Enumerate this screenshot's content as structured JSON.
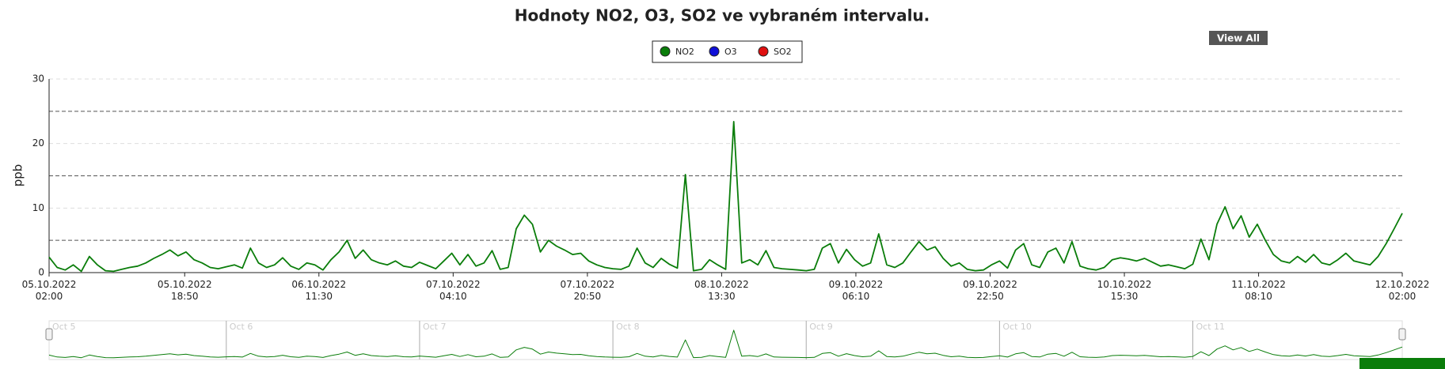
{
  "chart_data": {
    "type": "line",
    "title": "Hodnoty NO2, O3, SO2 ve vybraném intervalu.",
    "y_label": "ppb",
    "button": "View All",
    "x": [
      "05.10.2022 02:00",
      "05.10.2022 03:00",
      "05.10.2022 04:00",
      "05.10.2022 05:00",
      "05.10.2022 06:00",
      "05.10.2022 07:00",
      "05.10.2022 08:00",
      "05.10.2022 09:00",
      "05.10.2022 10:00",
      "05.10.2022 11:00",
      "05.10.2022 12:00",
      "05.10.2022 13:00",
      "05.10.2022 14:00",
      "05.10.2022 15:00",
      "05.10.2022 16:00",
      "05.10.2022 17:00",
      "05.10.2022 18:00",
      "05.10.2022 19:00",
      "05.10.2022 20:00",
      "05.10.2022 21:00",
      "05.10.2022 22:00",
      "05.10.2022 23:00",
      "06.10.2022 00:00",
      "06.10.2022 01:00",
      "06.10.2022 02:00",
      "06.10.2022 03:00",
      "06.10.2022 04:00",
      "06.10.2022 05:00",
      "06.10.2022 06:00",
      "06.10.2022 07:00",
      "06.10.2022 08:00",
      "06.10.2022 09:00",
      "06.10.2022 10:00",
      "06.10.2022 11:00",
      "06.10.2022 12:00",
      "06.10.2022 13:00",
      "06.10.2022 14:00",
      "06.10.2022 15:00",
      "06.10.2022 16:00",
      "06.10.2022 17:00",
      "06.10.2022 18:00",
      "06.10.2022 19:00",
      "06.10.2022 20:00",
      "06.10.2022 21:00",
      "06.10.2022 22:00",
      "06.10.2022 23:00",
      "07.10.2022 00:00",
      "07.10.2022 01:00",
      "07.10.2022 02:00",
      "07.10.2022 03:00",
      "07.10.2022 04:00",
      "07.10.2022 05:00",
      "07.10.2022 06:00",
      "07.10.2022 07:00",
      "07.10.2022 08:00",
      "07.10.2022 09:00",
      "07.10.2022 10:00",
      "07.10.2022 11:00",
      "07.10.2022 12:00",
      "07.10.2022 13:00",
      "07.10.2022 14:00",
      "07.10.2022 15:00",
      "07.10.2022 16:00",
      "07.10.2022 17:00",
      "07.10.2022 18:00",
      "07.10.2022 19:00",
      "07.10.2022 20:00",
      "07.10.2022 21:00",
      "07.10.2022 22:00",
      "07.10.2022 23:00",
      "08.10.2022 00:00",
      "08.10.2022 01:00",
      "08.10.2022 02:00",
      "08.10.2022 03:00",
      "08.10.2022 04:00",
      "08.10.2022 05:00",
      "08.10.2022 06:00",
      "08.10.2022 07:00",
      "08.10.2022 08:00",
      "08.10.2022 09:00",
      "08.10.2022 10:00",
      "08.10.2022 11:00",
      "08.10.2022 12:00",
      "08.10.2022 13:00",
      "08.10.2022 14:00",
      "08.10.2022 15:00",
      "08.10.2022 16:00",
      "08.10.2022 17:00",
      "08.10.2022 18:00",
      "08.10.2022 19:00",
      "08.10.2022 20:00",
      "08.10.2022 21:00",
      "08.10.2022 22:00",
      "08.10.2022 23:00",
      "09.10.2022 00:00",
      "09.10.2022 01:00",
      "09.10.2022 02:00",
      "09.10.2022 03:00",
      "09.10.2022 04:00",
      "09.10.2022 05:00",
      "09.10.2022 06:00",
      "09.10.2022 07:00",
      "09.10.2022 08:00",
      "09.10.2022 09:00",
      "09.10.2022 10:00",
      "09.10.2022 11:00",
      "09.10.2022 12:00",
      "09.10.2022 13:00",
      "09.10.2022 14:00",
      "09.10.2022 15:00",
      "09.10.2022 16:00",
      "09.10.2022 17:00",
      "09.10.2022 18:00",
      "09.10.2022 19:00",
      "09.10.2022 20:00",
      "09.10.2022 21:00",
      "09.10.2022 22:00",
      "09.10.2022 23:00",
      "10.10.2022 00:00",
      "10.10.2022 01:00",
      "10.10.2022 02:00",
      "10.10.2022 03:00",
      "10.10.2022 04:00",
      "10.10.2022 05:00",
      "10.10.2022 06:00",
      "10.10.2022 07:00",
      "10.10.2022 08:00",
      "10.10.2022 09:00",
      "10.10.2022 10:00",
      "10.10.2022 11:00",
      "10.10.2022 12:00",
      "10.10.2022 13:00",
      "10.10.2022 14:00",
      "10.10.2022 15:00",
      "10.10.2022 16:00",
      "10.10.2022 17:00",
      "10.10.2022 18:00",
      "10.10.2022 19:00",
      "10.10.2022 20:00",
      "10.10.2022 21:00",
      "10.10.2022 22:00",
      "10.10.2022 23:00",
      "11.10.2022 00:00",
      "11.10.2022 01:00",
      "11.10.2022 02:00",
      "11.10.2022 03:00",
      "11.10.2022 04:00",
      "11.10.2022 05:00",
      "11.10.2022 06:00",
      "11.10.2022 07:00",
      "11.10.2022 08:00",
      "11.10.2022 09:00",
      "11.10.2022 10:00",
      "11.10.2022 11:00",
      "11.10.2022 12:00",
      "11.10.2022 13:00",
      "11.10.2022 14:00",
      "11.10.2022 15:00",
      "11.10.2022 16:00",
      "11.10.2022 17:00",
      "11.10.2022 18:00",
      "11.10.2022 19:00",
      "11.10.2022 20:00",
      "11.10.2022 21:00",
      "11.10.2022 22:00",
      "11.10.2022 23:00",
      "12.10.2022 00:00",
      "12.10.2022 01:00",
      "12.10.2022 02:00"
    ],
    "series": [
      {
        "name": "NO2",
        "color": "#0a7d0a",
        "values": [
          2.4,
          0.8,
          0.4,
          1.2,
          0.2,
          2.5,
          1.2,
          0.3,
          0.2,
          0.5,
          0.8,
          1.0,
          1.5,
          2.2,
          2.8,
          3.5,
          2.6,
          3.2,
          2.0,
          1.5,
          0.8,
          0.6,
          0.9,
          1.2,
          0.7,
          3.8,
          1.5,
          0.8,
          1.2,
          2.3,
          1.0,
          0.5,
          1.5,
          1.2,
          0.4,
          2.0,
          3.2,
          5.0,
          2.2,
          3.5,
          2.0,
          1.5,
          1.2,
          1.8,
          1.0,
          0.8,
          1.6,
          1.1,
          0.6,
          1.8,
          3.0,
          1.2,
          2.8,
          1.0,
          1.5,
          3.4,
          0.5,
          0.8,
          6.8,
          8.9,
          7.5,
          3.2,
          5.0,
          4.1,
          3.5,
          2.8,
          3.0,
          1.8,
          1.2,
          0.8,
          0.6,
          0.5,
          1.0,
          3.8,
          1.5,
          0.8,
          2.2,
          1.3,
          0.7,
          15.2,
          0.3,
          0.5,
          2.0,
          1.2,
          0.5,
          23.4,
          1.5,
          2.0,
          1.2,
          3.4,
          0.8,
          0.6,
          0.5,
          0.4,
          0.3,
          0.5,
          3.8,
          4.5,
          1.5,
          3.6,
          2.0,
          1.0,
          1.5,
          6.0,
          1.2,
          0.8,
          1.5,
          3.2,
          4.8,
          3.5,
          4.0,
          2.2,
          1.0,
          1.5,
          0.5,
          0.3,
          0.4,
          1.2,
          1.8,
          0.7,
          3.5,
          4.5,
          1.2,
          0.8,
          3.2,
          3.8,
          1.5,
          4.8,
          1.0,
          0.6,
          0.4,
          0.8,
          2.0,
          2.3,
          2.1,
          1.8,
          2.2,
          1.6,
          1.0,
          1.2,
          0.9,
          0.6,
          1.3,
          5.2,
          2.0,
          7.5,
          10.2,
          6.8,
          8.8,
          5.5,
          7.5,
          5.0,
          2.8,
          1.8,
          1.5,
          2.5,
          1.6,
          2.8,
          1.5,
          1.2,
          2.0,
          3.0,
          1.8,
          1.5,
          1.2,
          2.5,
          4.5,
          6.8,
          9.2
        ]
      },
      {
        "name": "O3",
        "color": "#1010d8",
        "values": [
          null,
          null,
          null,
          null,
          null,
          null,
          null,
          null,
          null,
          null,
          null,
          null,
          null,
          null,
          null,
          null,
          null,
          null,
          null,
          null,
          null,
          null,
          null,
          null,
          null,
          null,
          null,
          null,
          null,
          null,
          null,
          null,
          null,
          null,
          null,
          null,
          null,
          null,
          null,
          null,
          null,
          null,
          null,
          null,
          null,
          null,
          null,
          null,
          null,
          null,
          null,
          null,
          null,
          null,
          null,
          null,
          null,
          null,
          null,
          null,
          null,
          null,
          null,
          null,
          null,
          null,
          null,
          null,
          null,
          null,
          null,
          null,
          null,
          null,
          null,
          null,
          null,
          null,
          null,
          null,
          null,
          null,
          null,
          null,
          null,
          null,
          null,
          null,
          null,
          null,
          null,
          null,
          null,
          null,
          null,
          null,
          null,
          null,
          null,
          null,
          null,
          null,
          null,
          null,
          null,
          null,
          null,
          null,
          null,
          null,
          null,
          null,
          null,
          null,
          null,
          null,
          null,
          null,
          null,
          null,
          null,
          null,
          null,
          null,
          null,
          null,
          null,
          null,
          null,
          null,
          null,
          null,
          null,
          null,
          null,
          null,
          null,
          null,
          null,
          null,
          null,
          null,
          null,
          null,
          null,
          null,
          null,
          null,
          null,
          null,
          null,
          null,
          null,
          null,
          null,
          null,
          null,
          null,
          null,
          null,
          null,
          null,
          null,
          null,
          null,
          null,
          null,
          null,
          null
        ]
      },
      {
        "name": "SO2",
        "color": "#e01010",
        "values": [
          null,
          null,
          null,
          null,
          null,
          null,
          null,
          null,
          null,
          null,
          null,
          null,
          null,
          null,
          null,
          null,
          null,
          null,
          null,
          null,
          null,
          null,
          null,
          null,
          null,
          null,
          null,
          null,
          null,
          null,
          null,
          null,
          null,
          null,
          null,
          null,
          null,
          null,
          null,
          null,
          null,
          null,
          null,
          null,
          null,
          null,
          null,
          null,
          null,
          null,
          null,
          null,
          null,
          null,
          null,
          null,
          null,
          null,
          null,
          null,
          null,
          null,
          null,
          null,
          null,
          null,
          null,
          null,
          null,
          null,
          null,
          null,
          null,
          null,
          null,
          null,
          null,
          null,
          null,
          null,
          null,
          null,
          null,
          null,
          null,
          null,
          null,
          null,
          null,
          null,
          null,
          null,
          null,
          null,
          null,
          null,
          null,
          null,
          null,
          null,
          null,
          null,
          null,
          null,
          null,
          null,
          null,
          null,
          null,
          null,
          null,
          null,
          null,
          null,
          null,
          null,
          null,
          null,
          null,
          null,
          null,
          null,
          null,
          null,
          null,
          null,
          null,
          null,
          null,
          null,
          null,
          null,
          null,
          null,
          null,
          null,
          null,
          null,
          null,
          null,
          null,
          null,
          null,
          null,
          null,
          null,
          null,
          null,
          null,
          null,
          null,
          null,
          null,
          null,
          null,
          null,
          null,
          null,
          null,
          null,
          null,
          null,
          null,
          null,
          null,
          null,
          null,
          null,
          null
        ]
      }
    ],
    "xlim": [
      "05.10.2022 02:00",
      "12.10.2022 02:00"
    ],
    "xticks": [
      "05.10.2022 02:00",
      "05.10.2022 18:50",
      "06.10.2022 11:30",
      "07.10.2022 04:10",
      "07.10.2022 20:50",
      "08.10.2022 13:30",
      "09.10.2022 06:10",
      "09.10.2022 22:50",
      "10.10.2022 15:30",
      "11.10.2022 08:10",
      "12.10.2022 02:00"
    ],
    "ylim": [
      0,
      30
    ],
    "yticks": [
      0,
      10,
      20,
      30
    ],
    "grid": true,
    "reference_lines": [
      5,
      15,
      25
    ],
    "legend": "top",
    "navigator": {
      "ticks": [
        {
          "value": "05.10.2022 00:00",
          "label": "Oct 5"
        },
        {
          "value": "06.10.2022 00:00",
          "label": "Oct 6"
        },
        {
          "value": "07.10.2022 00:00",
          "label": "Oct 7"
        },
        {
          "value": "08.10.2022 00:00",
          "label": "Oct 8"
        },
        {
          "value": "09.10.2022 00:00",
          "label": "Oct 9"
        },
        {
          "value": "10.10.2022 00:00",
          "label": "Oct 10"
        },
        {
          "value": "11.10.2022 00:00",
          "label": "Oct 11"
        }
      ]
    }
  }
}
